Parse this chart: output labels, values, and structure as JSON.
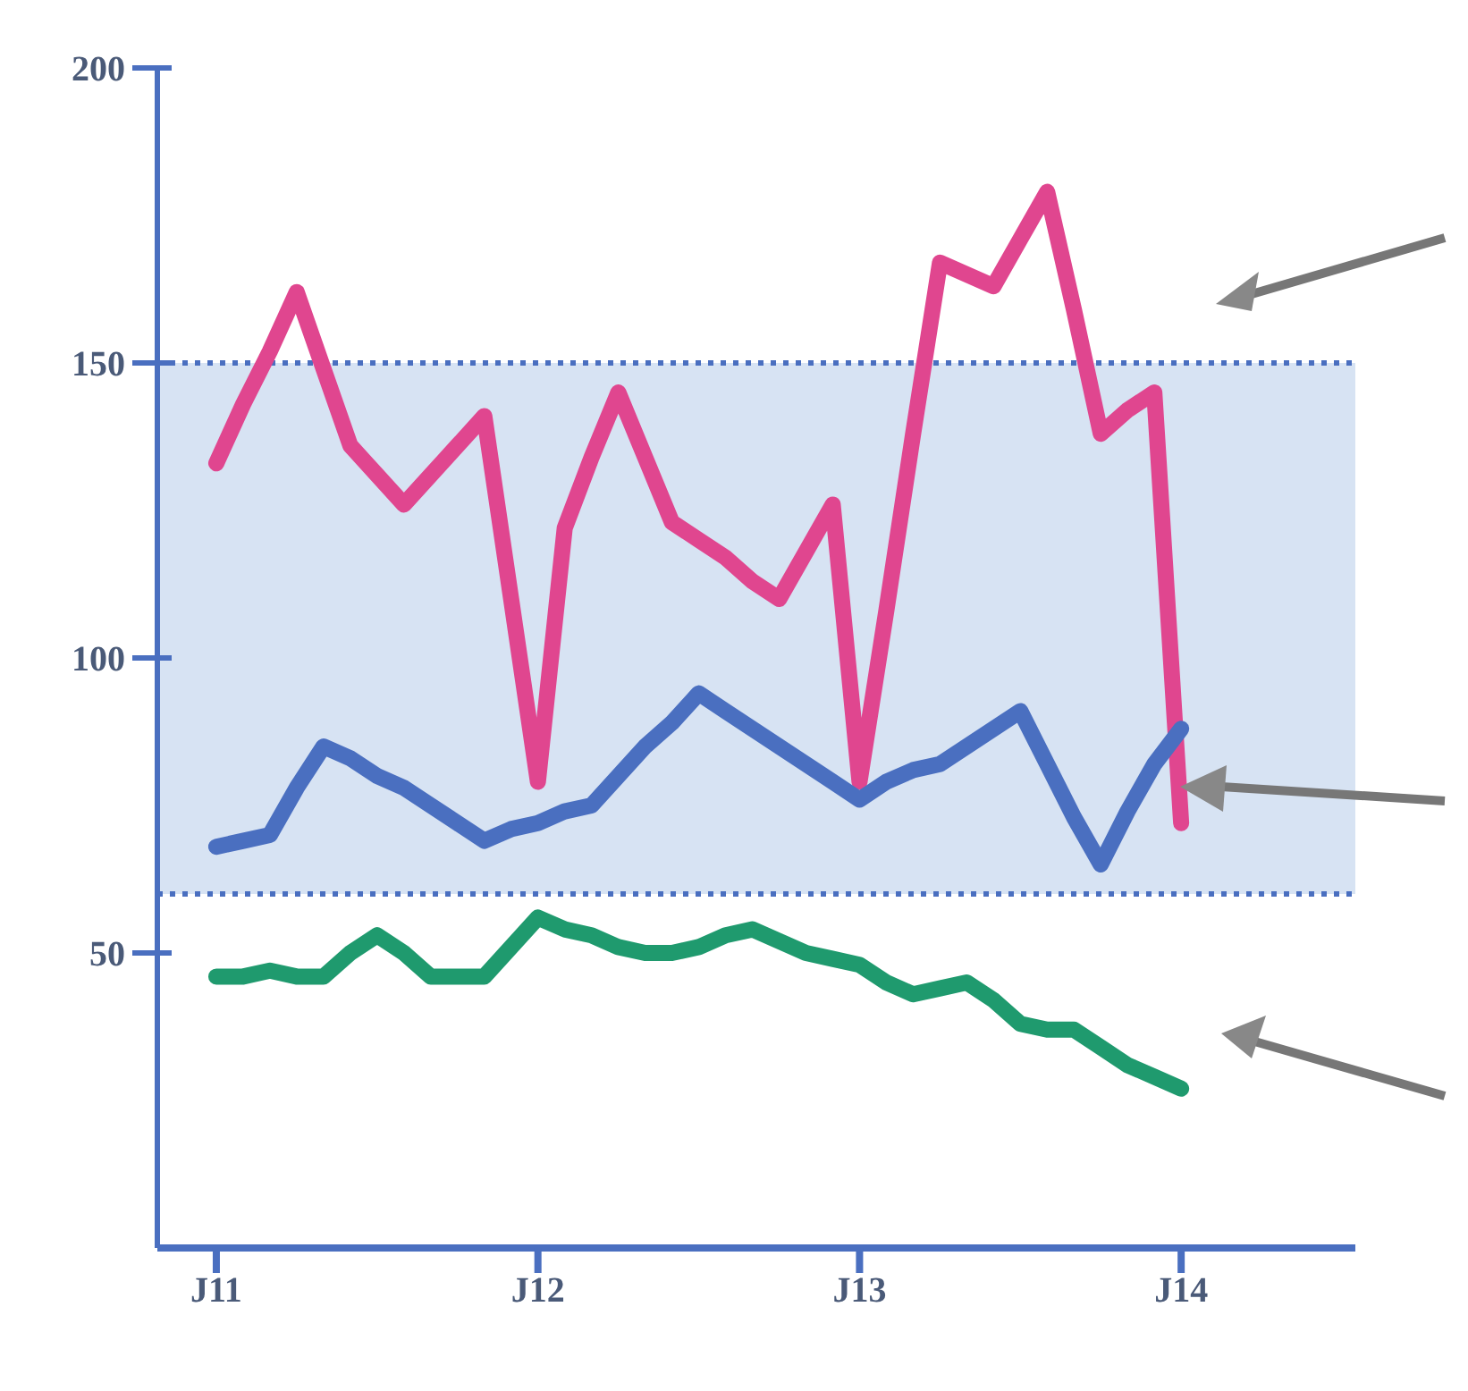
{
  "chart_data": {
    "type": "line",
    "marker": "none",
    "line_style": "solid",
    "categories": [
      "J11",
      null,
      null,
      null,
      null,
      null,
      null,
      null,
      null,
      null,
      null,
      null,
      "J12",
      null,
      null,
      null,
      null,
      null,
      null,
      null,
      null,
      null,
      null,
      null,
      "J13",
      null,
      null,
      null,
      null,
      null,
      null,
      null,
      null,
      null,
      null,
      null,
      "J14",
      null,
      null,
      null,
      null,
      null,
      null
    ],
    "ylim": [
      0,
      200
    ],
    "yticks": [
      50,
      100,
      150,
      200
    ],
    "bands": [
      {
        "axis": "y",
        "from": 60,
        "to": 150,
        "color": "#cddcf0"
      }
    ],
    "ref_lines": [
      {
        "axis": "y",
        "value": 60,
        "color": "#4a6fc0",
        "line_style": "dotted"
      },
      {
        "axis": "y",
        "value": 150,
        "color": "#4a6fc0",
        "line_style": "dotted"
      }
    ],
    "series": [
      {
        "color": "#e0468f",
        "values": [
          133,
          143,
          152,
          162,
          149,
          136,
          131,
          126,
          131,
          136,
          141,
          110,
          79,
          122,
          134,
          145,
          134,
          123,
          120,
          117,
          113,
          110,
          118,
          126,
          79,
          108,
          138,
          167,
          165,
          163,
          171,
          179,
          159,
          138,
          142,
          145,
          72,
          null,
          null,
          null,
          null,
          null,
          null
        ]
      },
      {
        "color": "#4a6fc0",
        "values": [
          68,
          69,
          70,
          78,
          85,
          83,
          80,
          78,
          75,
          72,
          69,
          71,
          72,
          74,
          75,
          80,
          85,
          89,
          94,
          91,
          88,
          85,
          82,
          79,
          76,
          79,
          81,
          82,
          85,
          88,
          91,
          82,
          73,
          65,
          74,
          82,
          88,
          null,
          null,
          null,
          null,
          null,
          null
        ]
      },
      {
        "color": "#1f9a6e",
        "values": [
          46,
          46,
          47,
          46,
          46,
          50,
          53,
          50,
          46,
          46,
          46,
          51,
          56,
          54,
          53,
          51,
          50,
          50,
          51,
          53,
          54,
          52,
          50,
          49,
          48,
          45,
          43,
          44,
          45,
          42,
          38,
          37,
          37,
          34,
          31,
          29,
          27,
          null,
          null,
          null,
          null,
          null,
          null
        ]
      }
    ]
  }
}
